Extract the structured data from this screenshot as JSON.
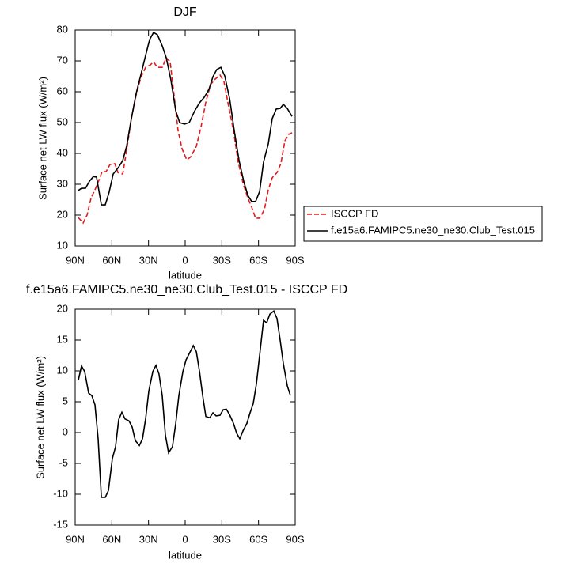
{
  "chart_data": [
    {
      "type": "line",
      "title": "DJF",
      "xlabel": "latitude",
      "ylabel": "Surface net LW flux (W/m²)",
      "xlim": [
        90,
        -90
      ],
      "ylim": [
        10,
        80
      ],
      "xticks": [
        {
          "value": 90,
          "label": "90N"
        },
        {
          "value": 60,
          "label": "60N"
        },
        {
          "value": 30,
          "label": "30N"
        },
        0,
        {
          "value": -30,
          "label": "30S"
        },
        {
          "value": -60,
          "label": "60S"
        },
        {
          "value": -90,
          "label": "90S"
        }
      ],
      "yticks": [
        10,
        20,
        30,
        40,
        50,
        60,
        70,
        80
      ],
      "legend": "right",
      "series": [
        {
          "name": "ISCCP FD",
          "color": "#e41a1c",
          "dash": true,
          "x": [
            87.4,
            83.5,
            80.3,
            77.0,
            73.8,
            70.6,
            68.0,
            64.7,
            61.5,
            57.6,
            55.0,
            51.1,
            47.9,
            44.0,
            40.1,
            36.3,
            32.4,
            28.5,
            25.9,
            22.7,
            18.8,
            15.5,
            12.3,
            9.0,
            5.8,
            2.6,
            -1.3,
            -4.5,
            -9.1,
            -13.0,
            -16.8,
            -20.7,
            -24.6,
            -28.5,
            -31.7,
            -35.6,
            -39.5,
            -43.4,
            -47.3,
            -51.2,
            -54.4,
            -57.6,
            -60.9,
            -64.8,
            -68.0,
            -71.2,
            -75.1,
            -78.3,
            -81.6,
            -84.8,
            -87.4
          ],
          "values": [
            19.2,
            17.4,
            20,
            25.6,
            28.2,
            31.3,
            34.1,
            34.1,
            36.4,
            36.7,
            33.8,
            33.3,
            41,
            51.3,
            59,
            64.6,
            67.9,
            68.7,
            69.7,
            67.9,
            67.9,
            71,
            69.7,
            58.5,
            47.4,
            41.5,
            37.9,
            38.9,
            42.3,
            48.7,
            56.4,
            62.3,
            64.1,
            65.4,
            63.3,
            55.1,
            47.4,
            37.2,
            30.3,
            25.6,
            22.6,
            19,
            19,
            21.8,
            28.2,
            32.1,
            33.8,
            36.7,
            44.1,
            46.2,
            46.7
          ]
        },
        {
          "name": "f.e15a6.FAMIPC5.ne30_ne30.Club_Test.015",
          "color": "#000000",
          "dash": false,
          "x": [
            87.4,
            84.8,
            81.6,
            78.3,
            75.1,
            72.5,
            68.6,
            65.4,
            62.2,
            58.9,
            54.4,
            51.1,
            47.9,
            44.0,
            40.1,
            36.3,
            32.4,
            29.1,
            25.9,
            22.7,
            18.8,
            15.5,
            11.6,
            7.7,
            4.5,
            0.6,
            -3.3,
            -7.8,
            -11.7,
            -15.6,
            -19.5,
            -22.7,
            -25.9,
            -29.2,
            -32.4,
            -36.4,
            -40.2,
            -44.1,
            -48.0,
            -51.3,
            -54.4,
            -57.6,
            -60.9,
            -64.1,
            -68.0,
            -71.2,
            -74.5,
            -77.7,
            -80.3,
            -83.5,
            -87.4
          ],
          "values": [
            28,
            28.7,
            28.7,
            31,
            32.5,
            32.3,
            23.3,
            23.3,
            27.4,
            33.3,
            35.6,
            37.7,
            42.3,
            51.3,
            59.5,
            65.4,
            71.8,
            76.9,
            79.2,
            78.5,
            74.9,
            71,
            63.6,
            53.8,
            50,
            49.5,
            50,
            53.8,
            56.4,
            58.2,
            60.8,
            64.9,
            67.2,
            67.9,
            65.1,
            57.7,
            47.2,
            37.7,
            30.8,
            26.4,
            24.4,
            24.4,
            27.7,
            37.2,
            43.1,
            51.3,
            54.4,
            54.6,
            55.9,
            54.6,
            52
          ]
        }
      ]
    },
    {
      "type": "line",
      "title": "f.e15a6.FAMIPC5.ne30_ne30.Club_Test.015 - ISCCP FD",
      "xlabel": "latitude",
      "ylabel": "Surface net LW flux (W/m²)",
      "xlim": [
        90,
        -90
      ],
      "ylim": [
        -15,
        20
      ],
      "xticks": [
        {
          "value": 90,
          "label": "90N"
        },
        {
          "value": 60,
          "label": "60N"
        },
        {
          "value": 30,
          "label": "30N"
        },
        0,
        {
          "value": -30,
          "label": "30S"
        },
        {
          "value": -60,
          "label": "60S"
        },
        {
          "value": -90,
          "label": "90S"
        }
      ],
      "yticks": [
        -15,
        -10,
        -5,
        0,
        5,
        10,
        15,
        20
      ],
      "color": "#000000",
      "x": [
        87.4,
        84.8,
        82.2,
        79.0,
        76.4,
        73.8,
        71.2,
        68.6,
        65.4,
        62.8,
        59.6,
        57.0,
        54.4,
        51.8,
        49.2,
        46.0,
        43.4,
        40.8,
        37.5,
        34.9,
        32.4,
        29.8,
        26.5,
        23.9,
        21.4,
        18.8,
        16.2,
        13.6,
        10.4,
        7.7,
        5.2,
        1.9,
        -0.7,
        -3.3,
        -6.6,
        -9.1,
        -11.7,
        -14.3,
        -16.9,
        -20.1,
        -22.7,
        -25.3,
        -28.5,
        -31.1,
        -33.7,
        -36.3,
        -39.5,
        -42.1,
        -44.7,
        -47.3,
        -50.5,
        -53.1,
        -55.7,
        -58.3,
        -61.6,
        -64.1,
        -66.7,
        -69.3,
        -72.5,
        -75.1,
        -77.7,
        -80.3,
        -83.5,
        -86.1
      ],
      "values": [
        8.5,
        10.8,
        9.9,
        6.4,
        6.0,
        4.5,
        -1.0,
        -10.5,
        -10.5,
        -9.4,
        -4.2,
        -2.3,
        2.1,
        3.3,
        2.2,
        1.9,
        0.9,
        -1.3,
        -2.1,
        -1.0,
        2.2,
        6.7,
        9.9,
        10.9,
        9.5,
        6.0,
        -0.4,
        -3.3,
        -2.3,
        1.5,
        6.0,
        9.9,
        11.8,
        12.8,
        14.1,
        13.1,
        9.9,
        6.0,
        2.6,
        2.4,
        3.2,
        2.7,
        2.8,
        3.7,
        3.8,
        2.9,
        1.5,
        -0.1,
        -1.0,
        0.3,
        1.5,
        3.2,
        4.7,
        7.9,
        13.7,
        18.2,
        17.8,
        19.2,
        19.7,
        18.5,
        15.0,
        11.2,
        7.6,
        6.0
      ]
    }
  ]
}
